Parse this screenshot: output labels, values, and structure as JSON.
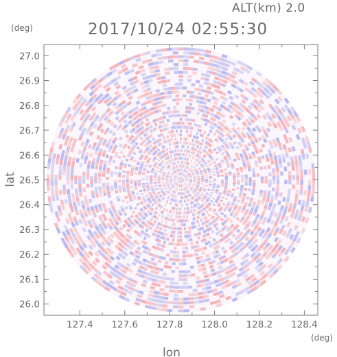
{
  "chart_data": {
    "type": "heatmap",
    "title": "2017/10/24 02:55:30",
    "altitude_label": "ALT(km) 2.0",
    "xlabel": "lon",
    "ylabel": "lat",
    "x_unit": "(deg)",
    "y_unit": "(deg)",
    "xlim": [
      127.24,
      128.46
    ],
    "ylim": [
      25.955,
      27.045
    ],
    "x_ticks": [
      127.4,
      127.6,
      127.8,
      128.0,
      128.2,
      128.4
    ],
    "x_tick_labels": [
      "127.4",
      "127.6",
      "127.8",
      "128.0",
      "128.2",
      "128.4"
    ],
    "y_ticks": [
      26.0,
      26.1,
      26.2,
      26.3,
      26.4,
      26.5,
      26.6,
      26.7,
      26.8,
      26.9,
      27.0
    ],
    "y_tick_labels": [
      "26.0",
      "26.1",
      "26.2",
      "26.3",
      "26.4",
      "26.5",
      "26.6",
      "26.7",
      "26.8",
      "26.9",
      "27.0"
    ],
    "radar_center": {
      "lon": 127.85,
      "lat": 26.5
    },
    "radar_radius_lat_deg": 0.535,
    "radar_radius_lon_deg": 0.6,
    "colors": {
      "positive": "#f4a3a8",
      "negative": "#a9abee",
      "neutral": "#ffffff"
    }
  }
}
